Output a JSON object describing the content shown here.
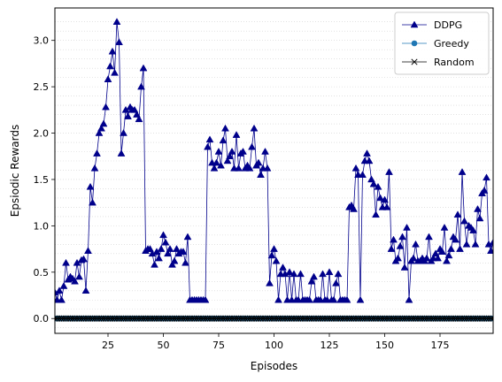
{
  "chart_data": {
    "type": "line",
    "xlabel": "Episodes",
    "ylabel": "Epsiodic Rewards",
    "xlim": [
      1,
      199
    ],
    "ylim": [
      -0.16,
      3.35
    ],
    "x_ticks": [
      25,
      50,
      75,
      100,
      125,
      150,
      175
    ],
    "y_ticks": [
      0.0,
      0.5,
      1.0,
      1.5,
      2.0,
      2.5,
      3.0
    ],
    "y_tick_labels": [
      "0.0",
      "0.5",
      "1.0",
      "1.5",
      "2.0",
      "2.5",
      "3.0"
    ],
    "x_tick_labels": [
      "25",
      "50",
      "75",
      "100",
      "125",
      "150",
      "175"
    ],
    "grid": "horizontal-dotted",
    "legend_position": "top-right",
    "series": [
      {
        "name": "DDPG",
        "color": "#00008b",
        "marker": "triangle",
        "x_start": 1,
        "values": [
          0.28,
          0.2,
          0.3,
          0.2,
          0.35,
          0.6,
          0.42,
          0.45,
          0.43,
          0.4,
          0.6,
          0.45,
          0.63,
          0.64,
          0.3,
          0.73,
          1.42,
          1.25,
          1.62,
          1.78,
          2.0,
          2.05,
          2.1,
          2.28,
          2.58,
          2.72,
          2.88,
          2.65,
          3.2,
          2.98,
          1.78,
          2.0,
          2.25,
          2.18,
          2.28,
          2.25,
          2.25,
          2.2,
          2.15,
          2.5,
          2.7,
          0.73,
          0.75,
          0.75,
          0.7,
          0.58,
          0.72,
          0.65,
          0.75,
          0.9,
          0.82,
          0.7,
          0.75,
          0.58,
          0.62,
          0.75,
          0.7,
          0.72,
          0.72,
          0.6,
          0.88,
          0.2,
          0.2,
          0.2,
          0.2,
          0.2,
          0.2,
          0.2,
          0.2,
          1.85,
          1.93,
          1.68,
          1.62,
          1.68,
          1.8,
          1.65,
          1.92,
          2.05,
          1.7,
          1.75,
          1.8,
          1.62,
          1.98,
          1.62,
          1.78,
          1.8,
          1.62,
          1.65,
          1.62,
          1.85,
          2.05,
          1.65,
          1.68,
          1.55,
          1.62,
          1.8,
          1.62,
          0.38,
          0.68,
          0.75,
          0.62,
          0.2,
          0.48,
          0.55,
          0.48,
          0.2,
          0.5,
          0.2,
          0.48,
          0.2,
          0.2,
          0.48,
          0.2,
          0.2,
          0.2,
          0.2,
          0.4,
          0.45,
          0.2,
          0.2,
          0.2,
          0.48,
          0.2,
          0.2,
          0.5,
          0.2,
          0.2,
          0.38,
          0.48,
          0.2,
          0.2,
          0.2,
          0.2,
          1.2,
          1.22,
          1.18,
          1.62,
          1.55,
          0.2,
          1.55,
          1.7,
          1.78,
          1.7,
          1.5,
          1.45,
          1.12,
          1.42,
          1.3,
          1.2,
          1.28,
          1.2,
          1.58,
          0.75,
          0.85,
          0.62,
          0.65,
          0.78,
          0.88,
          0.55,
          0.98,
          0.2,
          0.62,
          0.65,
          0.8,
          0.62,
          0.62,
          0.65,
          0.62,
          0.65,
          0.88,
          0.62,
          0.65,
          0.7,
          0.65,
          0.75,
          0.72,
          0.98,
          0.62,
          0.68,
          0.75,
          0.88,
          0.85,
          1.12,
          0.75,
          1.58,
          1.05,
          0.8,
          1.0,
          0.98,
          0.95,
          0.8,
          1.18,
          1.08,
          1.35,
          1.38,
          1.52,
          0.8,
          0.73,
          0.82
        ]
      },
      {
        "name": "Greedy",
        "color": "#1f77b4",
        "marker": "circle",
        "x_start": 1,
        "constant": 0.0,
        "count": 199
      },
      {
        "name": "Random",
        "color": "#000000",
        "marker": "x",
        "x_start": 1,
        "constant": 0.0,
        "count": 199
      }
    ]
  }
}
